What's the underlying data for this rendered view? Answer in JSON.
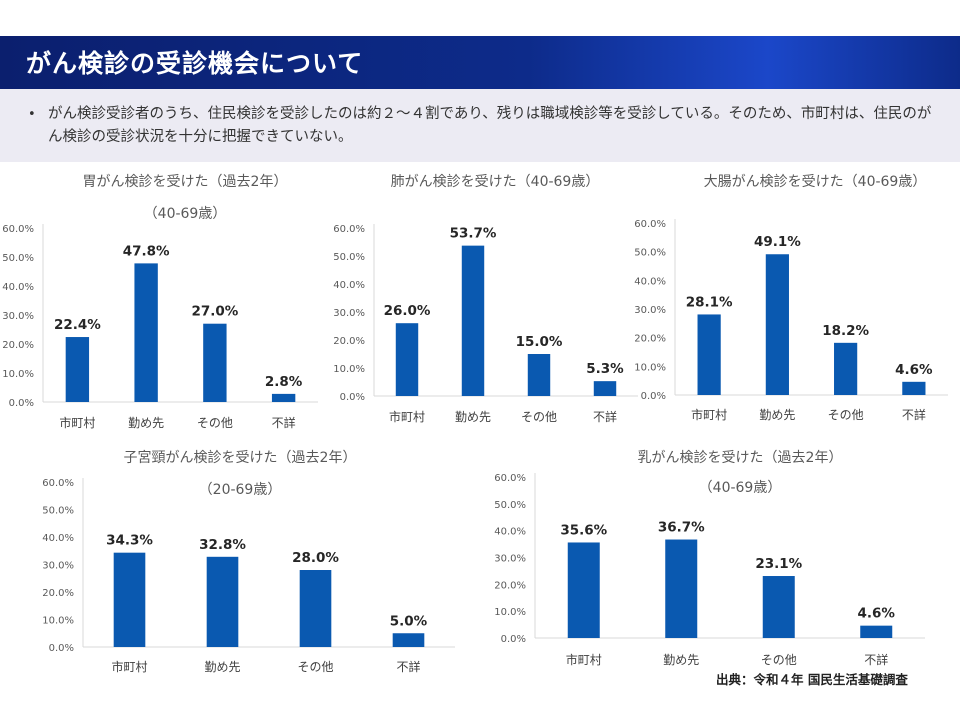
{
  "page": {
    "title": "がん検診の受診機会について",
    "note_bullet": "•",
    "note": "がん検診受診者のうち、住民検診を受診したのは約２～４割であり、残りは職域検診等を受診している。そのため、市町村は、住民のがん検診の受診状況を十分に把握できていない。",
    "source": "出典：令和４年 国民生活基礎調査"
  },
  "colors": {
    "bar": "#0a59b0",
    "axis": "#d9d9d9",
    "banner": "#0d2b8a"
  },
  "chart_data": [
    {
      "type": "bar",
      "title_lines": [
        "胃がん検診を受けた（過去2年）",
        "（40-69歳）"
      ],
      "categories": [
        "市町村",
        "勤め先",
        "その他",
        "不詳"
      ],
      "values": [
        22.4,
        47.8,
        27.0,
        2.8
      ],
      "labels": [
        "22.4%",
        "47.8%",
        "27.0%",
        "2.8%"
      ],
      "yticks": [
        "0.0%",
        "10.0%",
        "20.0%",
        "30.0%",
        "40.0%",
        "50.0%",
        "60.0%"
      ],
      "ylim": [
        0,
        60
      ]
    },
    {
      "type": "bar",
      "title_lines": [
        "肺がん検診を受けた（40-69歳）"
      ],
      "categories": [
        "市町村",
        "勤め先",
        "その他",
        "不詳"
      ],
      "values": [
        26.0,
        53.7,
        15.0,
        5.3
      ],
      "labels": [
        "26.0%",
        "53.7%",
        "15.0%",
        "5.3%"
      ],
      "yticks": [
        "0.0%",
        "10.0%",
        "20.0%",
        "30.0%",
        "40.0%",
        "50.0%",
        "60.0%"
      ],
      "ylim": [
        0,
        60
      ]
    },
    {
      "type": "bar",
      "title_lines": [
        "大腸がん検診を受けた（40-69歳）"
      ],
      "categories": [
        "市町村",
        "勤め先",
        "その他",
        "不詳"
      ],
      "values": [
        28.1,
        49.1,
        18.2,
        4.6
      ],
      "labels": [
        "28.1%",
        "49.1%",
        "18.2%",
        "4.6%"
      ],
      "yticks": [
        "0.0%",
        "10.0%",
        "20.0%",
        "30.0%",
        "40.0%",
        "50.0%",
        "60.0%"
      ],
      "ylim": [
        0,
        60
      ]
    },
    {
      "type": "bar",
      "title_lines": [
        "子宮頸がん検診を受けた（過去2年）",
        "（20-69歳）"
      ],
      "categories": [
        "市町村",
        "勤め先",
        "その他",
        "不詳"
      ],
      "values": [
        34.3,
        32.8,
        28.0,
        5.0
      ],
      "labels": [
        "34.3%",
        "32.8%",
        "28.0%",
        "5.0%"
      ],
      "yticks": [
        "0.0%",
        "10.0%",
        "20.0%",
        "30.0%",
        "40.0%",
        "50.0%",
        "60.0%"
      ],
      "ylim": [
        0,
        60
      ]
    },
    {
      "type": "bar",
      "title_lines": [
        "乳がん検診を受けた（過去2年）",
        "（40-69歳）"
      ],
      "categories": [
        "市町村",
        "勤め先",
        "その他",
        "不詳"
      ],
      "values": [
        35.6,
        36.7,
        23.1,
        4.6
      ],
      "labels": [
        "35.6%",
        "36.7%",
        "23.1%",
        "4.6%"
      ],
      "yticks": [
        "0.0%",
        "10.0%",
        "20.0%",
        "30.0%",
        "40.0%",
        "50.0%",
        "60.0%"
      ],
      "ylim": [
        0,
        60
      ]
    }
  ]
}
